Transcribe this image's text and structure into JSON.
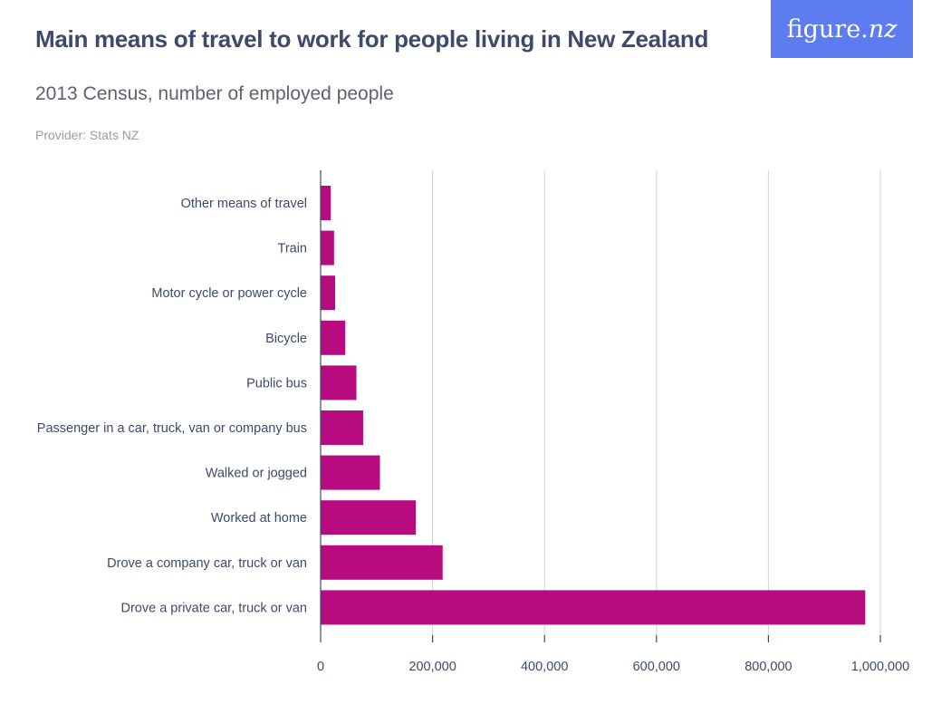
{
  "header": {
    "title": "Main means of travel to work for people living in New Zealand",
    "subtitle": "2013 Census, number of employed people",
    "provider": "Provider: Stats NZ",
    "brand_main": "figure.",
    "brand_suffix": "nz"
  },
  "colors": {
    "bar": "#b80b80",
    "brand_bg": "#5c7cf0",
    "gridline": "#d9d9d9",
    "axis": "#3d4a6b"
  },
  "chart_data": {
    "type": "bar",
    "orientation": "horizontal",
    "categories": [
      "Other means of travel",
      "Train",
      "Motor cycle or power cycle",
      "Bicycle",
      "Public bus",
      "Passenger in a car, truck, van or company bus",
      "Walked or jogged",
      "Worked at home",
      "Drove a company car, truck or van",
      "Drove a private car, truck or van"
    ],
    "values": [
      18000,
      24000,
      26000,
      44000,
      64000,
      76000,
      106000,
      170000,
      218000,
      973000
    ],
    "xlim": [
      0,
      1000000
    ],
    "xticks": [
      0,
      200000,
      400000,
      600000,
      800000,
      1000000
    ],
    "xtick_labels": [
      "0",
      "200,000",
      "400,000",
      "600,000",
      "800,000",
      "1,000,000"
    ],
    "grid": "vertical",
    "legend": "none"
  }
}
